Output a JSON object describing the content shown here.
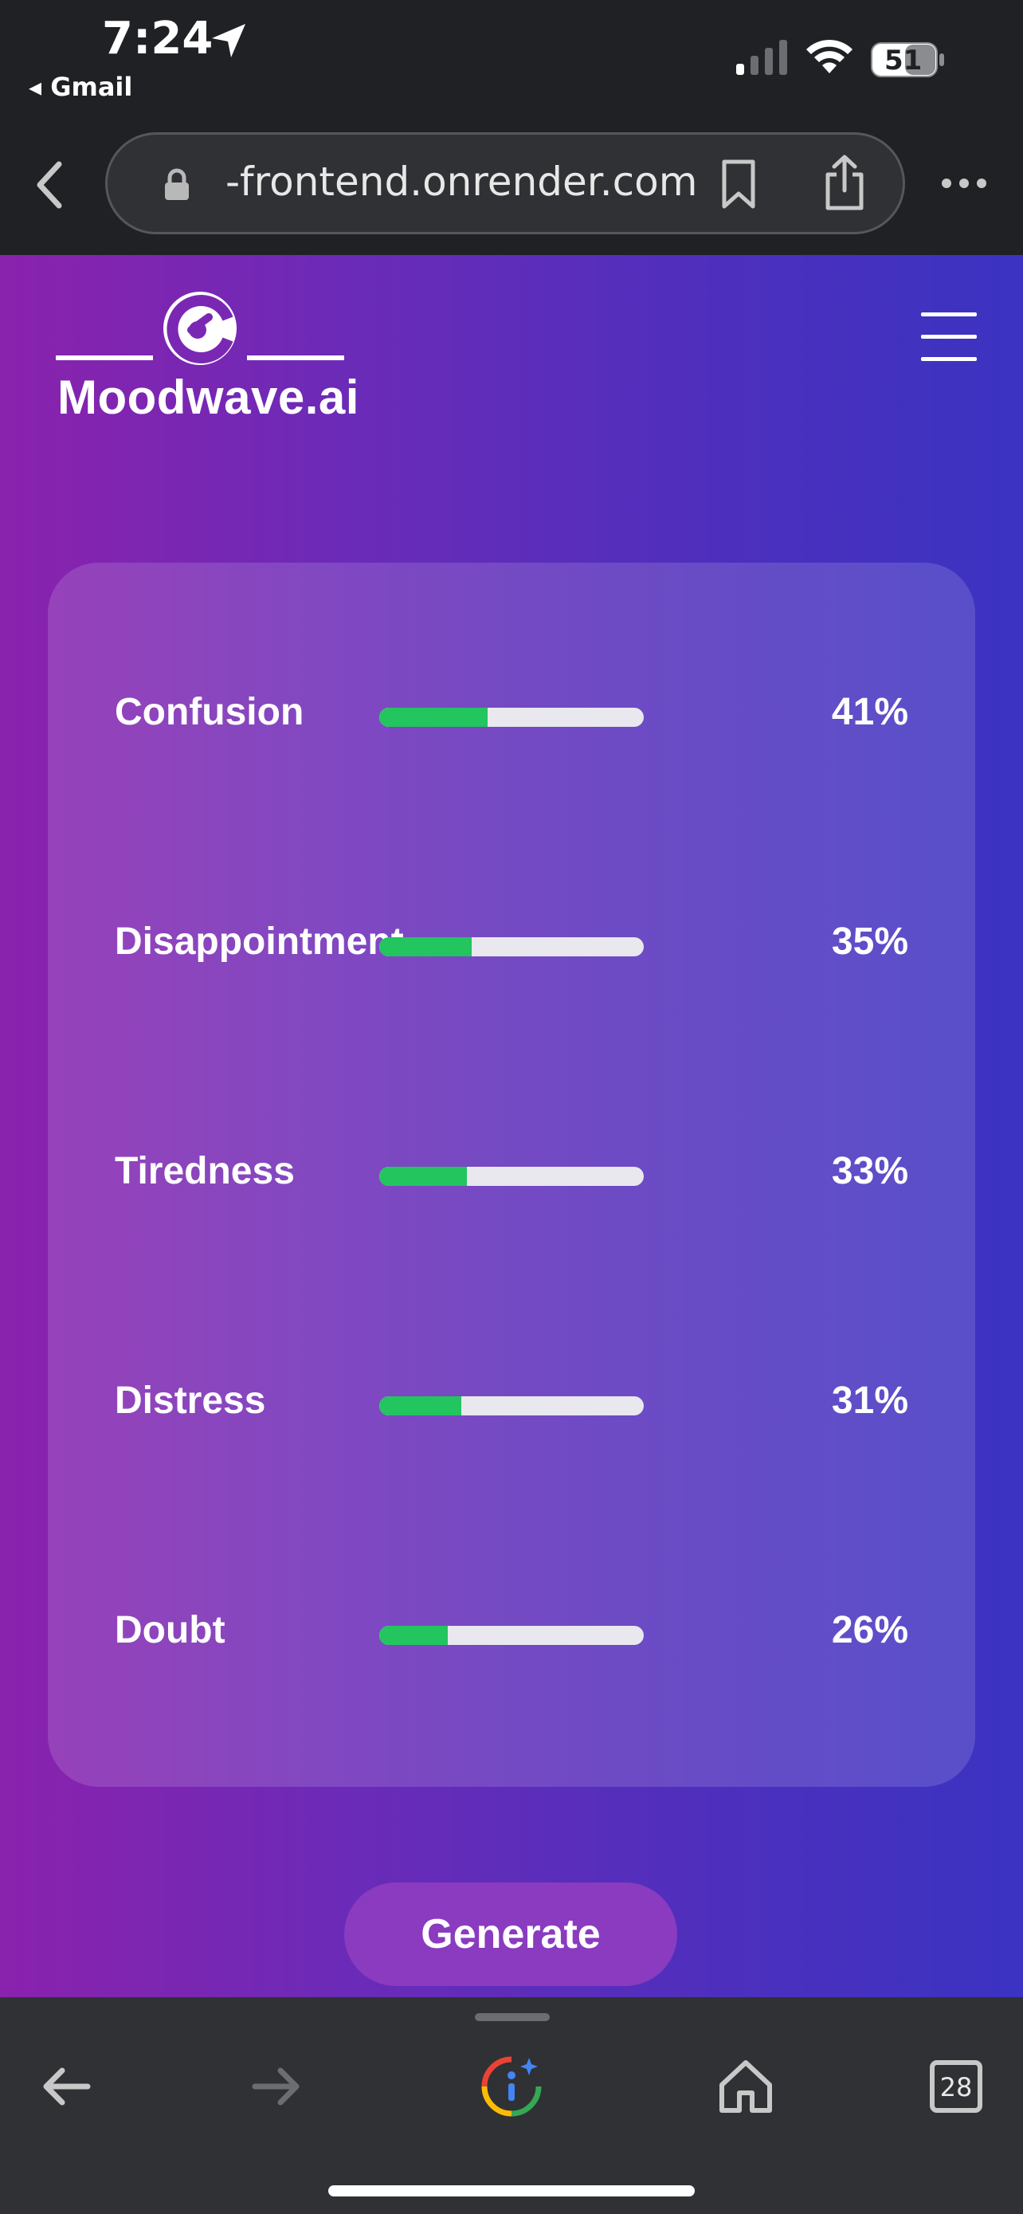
{
  "status_bar": {
    "time": "7:24",
    "back_app": "◂ Gmail",
    "battery": "51"
  },
  "browser": {
    "url": "-frontend.onrender.com",
    "tabs_count": "28"
  },
  "app": {
    "brand": "Moodwave.ai"
  },
  "emotions": [
    {
      "label": "Confusion",
      "percent": "41%",
      "value": 0.41
    },
    {
      "label": "Disappointment",
      "percent": "35%",
      "value": 0.35
    },
    {
      "label": "Tiredness",
      "percent": "33%",
      "value": 0.33
    },
    {
      "label": "Distress",
      "percent": "31%",
      "value": 0.31
    },
    {
      "label": "Doubt",
      "percent": "26%",
      "value": 0.26
    }
  ],
  "actions": {
    "generate_label": "Generate"
  },
  "colors": {
    "bar_fill": "#22c55e",
    "bar_track": "#e8e8ee",
    "button": "#8a3bc0"
  }
}
